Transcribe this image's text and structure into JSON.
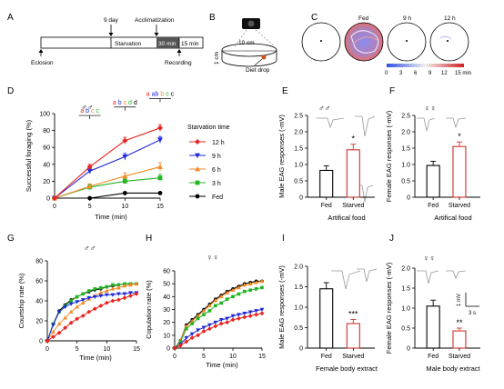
{
  "panel_letters": [
    "A",
    "B",
    "C",
    "D",
    "E",
    "F",
    "G",
    "H",
    "I",
    "J"
  ],
  "panel_A": {
    "labels": {
      "day9": "9 day",
      "acclimatization": "Acclimatization",
      "starvation": "Starvation",
      "min30": "30 min",
      "min15": "15 min",
      "eclosion": "Eclosion",
      "recording": "Recording"
    }
  },
  "panel_B": {
    "diameter": "10 cm",
    "height": "1 cm",
    "drop": "Diet drop"
  },
  "panel_C": {
    "labels": [
      "Fed",
      "9 h",
      "12 h"
    ],
    "scale_ticks": [
      "0",
      "3",
      "6",
      "9",
      "12",
      "15 min"
    ],
    "colors": {
      "low": "#3050e0",
      "mid": "#f0f0f0",
      "high": "#d02020"
    }
  },
  "sex_symbols": {
    "male": "♂♂",
    "female": "♀♀"
  },
  "colors": {
    "h12": "#e8231e",
    "h9": "#1f2bd8",
    "h6": "#f58b25",
    "h3": "#23b523",
    "fed": "#000000",
    "starved_bar": "#d0302a",
    "fed_bar": "#000000"
  },
  "chart_data": [
    {
      "panel": "D",
      "type": "line",
      "xlabel": "Time (min)",
      "ylabel": "Successful foraging (%)",
      "xlim": [
        0,
        15
      ],
      "ylim": [
        0,
        100
      ],
      "xticks": [
        "0",
        "5",
        "10",
        "15"
      ],
      "yticks": [
        "0",
        "20",
        "40",
        "60",
        "80",
        "100"
      ],
      "legend_title": "Starvation time",
      "x": [
        0,
        5,
        10,
        15
      ],
      "series": [
        {
          "name": "12 h",
          "values": [
            0,
            37,
            68,
            83
          ],
          "err": [
            0,
            3,
            4,
            4
          ],
          "color": "#e8231e",
          "marker": "diamond"
        },
        {
          "name": "9 h",
          "values": [
            0,
            32,
            49,
            69
          ],
          "err": [
            0,
            3,
            4,
            4
          ],
          "color": "#1f2bd8",
          "marker": "triangle-down"
        },
        {
          "name": "6 h",
          "values": [
            0,
            14,
            26,
            37
          ],
          "err": [
            0,
            3,
            4,
            5
          ],
          "color": "#f58b25",
          "marker": "triangle-up"
        },
        {
          "name": "3 h",
          "values": [
            0,
            13,
            20,
            24
          ],
          "err": [
            0,
            3,
            3,
            4
          ],
          "color": "#23b523",
          "marker": "square"
        },
        {
          "name": "Fed",
          "values": [
            0,
            0,
            6,
            6
          ],
          "err": [
            0,
            0,
            1,
            1
          ],
          "color": "#000000",
          "marker": "circle"
        }
      ],
      "annotations": [
        {
          "x": 5,
          "letters": [
            "a",
            "b",
            "c",
            "c"
          ],
          "colors": [
            "#e8231e",
            "#1f2bd8",
            "#f58b25",
            "#23b523"
          ],
          "y": 101
        },
        {
          "x": 10,
          "letters": [
            "a",
            "b",
            "c",
            "d",
            "d"
          ],
          "colors": [
            "#e8231e",
            "#1f2bd8",
            "#f58b25",
            "#23b523",
            "#000000"
          ],
          "y": 111
        },
        {
          "x": 15,
          "letters": [
            "a",
            "ab",
            "b",
            "c",
            "c"
          ],
          "colors": [
            "#e8231e",
            "#1f2bd8",
            "#f58b25",
            "#23b523",
            "#000000"
          ],
          "y": 121
        }
      ]
    },
    {
      "panel": "E",
      "type": "bar",
      "title": "♂♂",
      "categories": [
        "Fed",
        "Starved"
      ],
      "values": [
        0.82,
        1.45
      ],
      "err": [
        0.14,
        0.17
      ],
      "ylabel": "Male EAG responses (-mV)",
      "xlabel": "Artifical food",
      "ylim": [
        0,
        2.5
      ],
      "yticks": [
        "0",
        "0.5",
        "1.0",
        "1.5",
        "2.0",
        "2.5"
      ],
      "significance": "*"
    },
    {
      "panel": "F",
      "type": "bar",
      "title": "♀♀",
      "categories": [
        "Fed",
        "Starved"
      ],
      "values": [
        0.97,
        1.55
      ],
      "err": [
        0.13,
        0.14
      ],
      "ylabel": "Female EAG responses (-mV)",
      "xlabel": "Artifical food",
      "ylim": [
        0,
        2.5
      ],
      "yticks": [
        "0",
        "0.5",
        "1.0",
        "1.5",
        "2.0",
        "2.5"
      ],
      "significance": "*"
    },
    {
      "panel": "G",
      "type": "line",
      "title": "♂♂",
      "xlabel": "Time (min)",
      "ylabel": "Courtship rate (%)",
      "xlim": [
        0,
        15
      ],
      "ylim": [
        0,
        80
      ],
      "xticks": [
        "0",
        "5",
        "10",
        "15"
      ],
      "yticks": [
        "0",
        "20",
        "40",
        "60",
        "80"
      ],
      "x": [
        0,
        1,
        2,
        3,
        4,
        5,
        6,
        7,
        8,
        9,
        10,
        11,
        12,
        13,
        14,
        15
      ],
      "series": [
        {
          "name": "Fed",
          "values": [
            0,
            17,
            30,
            36,
            41,
            44,
            47,
            49,
            51,
            52,
            54,
            55,
            56,
            57,
            57,
            57
          ],
          "color": "#000000"
        },
        {
          "name": "3 h",
          "values": [
            0,
            17,
            29,
            35,
            40,
            44,
            47,
            50,
            52,
            53,
            54,
            56,
            56,
            57,
            57,
            57
          ],
          "color": "#23b523"
        },
        {
          "name": "6 h",
          "values": [
            0,
            9,
            17,
            23,
            29,
            34,
            38,
            42,
            45,
            48,
            50,
            52,
            53,
            55,
            56,
            57
          ],
          "color": "#f58b25"
        },
        {
          "name": "9 h",
          "values": [
            0,
            16,
            29,
            34,
            37,
            39,
            41,
            43,
            44,
            45,
            46,
            46,
            47,
            47,
            48,
            48
          ],
          "color": "#1f2bd8"
        },
        {
          "name": "12 h",
          "values": [
            0,
            4,
            8,
            13,
            18,
            22,
            25,
            29,
            32,
            35,
            38,
            40,
            41,
            43,
            45,
            47
          ],
          "color": "#e8231e"
        }
      ]
    },
    {
      "panel": "H",
      "type": "line",
      "title": "♀♀",
      "xlabel": "Time (min)",
      "ylabel": "Copulation rate (%)",
      "xlim": [
        0,
        15
      ],
      "ylim": [
        0,
        60
      ],
      "xticks": [
        "0",
        "5",
        "10",
        "15"
      ],
      "yticks": [
        "0",
        "10",
        "20",
        "30",
        "40",
        "50",
        "60"
      ],
      "x": [
        0,
        1,
        2,
        3,
        4,
        5,
        6,
        7,
        8,
        9,
        10,
        11,
        12,
        13,
        14,
        15
      ],
      "series": [
        {
          "name": "Fed",
          "values": [
            0,
            6,
            18,
            22,
            26,
            30,
            34,
            38,
            41,
            44,
            46,
            48,
            50,
            51,
            52,
            52
          ],
          "color": "#000000"
        },
        {
          "name": "6 h",
          "values": [
            0,
            6,
            17,
            21,
            25,
            29,
            33,
            37,
            40,
            43,
            45,
            47,
            49,
            50,
            51,
            52
          ],
          "color": "#f58b25"
        },
        {
          "name": "3 h",
          "values": [
            0,
            5,
            15,
            19,
            23,
            26,
            29,
            33,
            35,
            38,
            40,
            42,
            44,
            45,
            46,
            47
          ],
          "color": "#23b523"
        },
        {
          "name": "9 h",
          "values": [
            0,
            3,
            8,
            11,
            14,
            16,
            18,
            20,
            22,
            23,
            25,
            26,
            27,
            28,
            29,
            30
          ],
          "color": "#1f2bd8"
        },
        {
          "name": "12 h",
          "values": [
            0,
            2,
            5,
            8,
            10,
            13,
            15,
            17,
            19,
            20,
            22,
            23,
            24,
            25,
            26,
            27
          ],
          "color": "#e8231e"
        }
      ]
    },
    {
      "panel": "I",
      "type": "bar",
      "categories": [
        "Fed",
        "Starved"
      ],
      "values": [
        1.45,
        0.6
      ],
      "err": [
        0.15,
        0.1
      ],
      "ylabel": "Male EAG responses (-mV)",
      "xlabel": "Female body extract",
      "ylim": [
        0,
        2.0
      ],
      "yticks": [
        "0",
        "0.5",
        "1.0",
        "1.5",
        "2.0"
      ],
      "significance": "***"
    },
    {
      "panel": "J",
      "type": "bar",
      "title": "♀♀",
      "categories": [
        "Fed",
        "Starved"
      ],
      "values": [
        1.05,
        0.43
      ],
      "err": [
        0.15,
        0.07
      ],
      "ylabel": "Female EAG responses (-mV)",
      "xlabel": "Male body extract",
      "ylim": [
        0,
        2.0
      ],
      "yticks": [
        "0",
        "0.5",
        "1.0",
        "1.5",
        "2.0"
      ],
      "significance": "**",
      "scalebar": {
        "v": "1 mV",
        "t": "3 s"
      }
    }
  ]
}
